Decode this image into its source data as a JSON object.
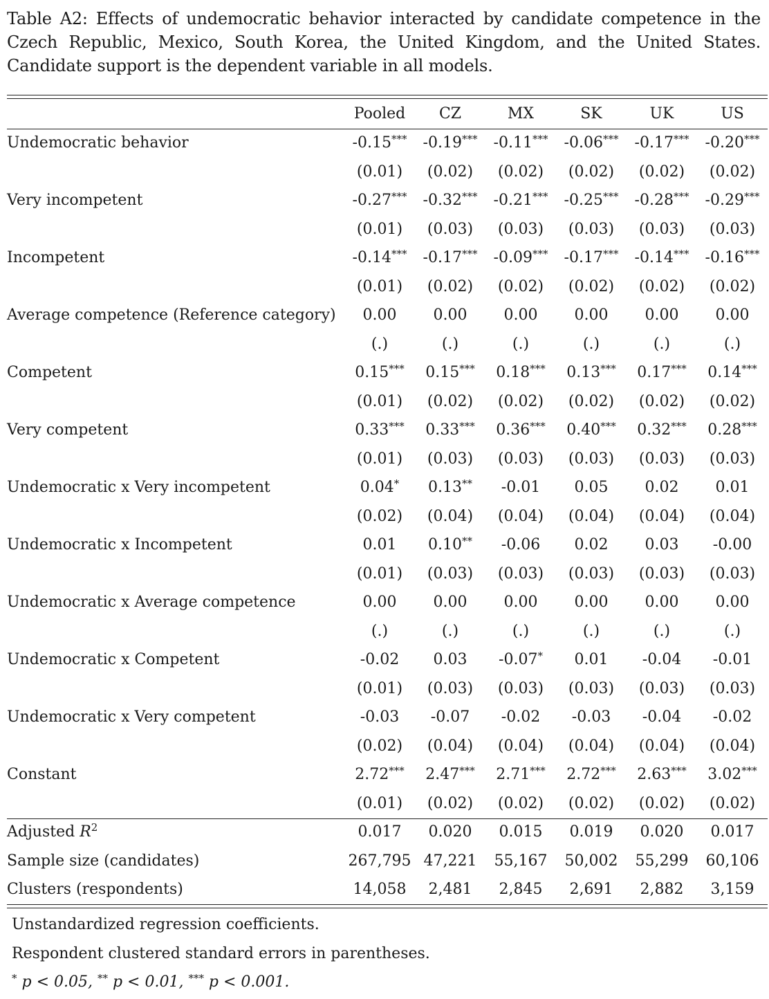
{
  "caption": {
    "lines": [
      "Table A2: Effects of undemocratic behavior interacted by candidate competence in the",
      "Czech Republic, Mexico, South Korea, the United Kingdom, and the United States.",
      "Candidate support is the dependent variable in all models."
    ]
  },
  "table": {
    "columns": [
      "Pooled",
      "CZ",
      "MX",
      "SK",
      "UK",
      "US"
    ],
    "rows": [
      {
        "label": "Undemocratic behavior",
        "coef": [
          [
            "-0.15",
            "***"
          ],
          [
            "-0.19",
            "***"
          ],
          [
            "-0.11",
            "***"
          ],
          [
            "-0.06",
            "***"
          ],
          [
            "-0.17",
            "***"
          ],
          [
            "-0.20",
            "***"
          ]
        ],
        "se": [
          "(0.01)",
          "(0.02)",
          "(0.02)",
          "(0.02)",
          "(0.02)",
          "(0.02)"
        ]
      },
      {
        "label": "Very incompetent",
        "coef": [
          [
            "-0.27",
            "***"
          ],
          [
            "-0.32",
            "***"
          ],
          [
            "-0.21",
            "***"
          ],
          [
            "-0.25",
            "***"
          ],
          [
            "-0.28",
            "***"
          ],
          [
            "-0.29",
            "***"
          ]
        ],
        "se": [
          "(0.01)",
          "(0.03)",
          "(0.03)",
          "(0.03)",
          "(0.03)",
          "(0.03)"
        ]
      },
      {
        "label": "Incompetent",
        "coef": [
          [
            "-0.14",
            "***"
          ],
          [
            "-0.17",
            "***"
          ],
          [
            "-0.09",
            "***"
          ],
          [
            "-0.17",
            "***"
          ],
          [
            "-0.14",
            "***"
          ],
          [
            "-0.16",
            "***"
          ]
        ],
        "se": [
          "(0.01)",
          "(0.02)",
          "(0.02)",
          "(0.02)",
          "(0.02)",
          "(0.02)"
        ]
      },
      {
        "label": "Average competence (Reference category)",
        "coef": [
          [
            "0.00",
            ""
          ],
          [
            "0.00",
            ""
          ],
          [
            "0.00",
            ""
          ],
          [
            "0.00",
            ""
          ],
          [
            "0.00",
            ""
          ],
          [
            "0.00",
            ""
          ]
        ],
        "se": [
          "(.)",
          "(.)",
          "(.)",
          "(.)",
          "(.)",
          "(.)"
        ]
      },
      {
        "label": "Competent",
        "coef": [
          [
            "0.15",
            "***"
          ],
          [
            "0.15",
            "***"
          ],
          [
            "0.18",
            "***"
          ],
          [
            "0.13",
            "***"
          ],
          [
            "0.17",
            "***"
          ],
          [
            "0.14",
            "***"
          ]
        ],
        "se": [
          "(0.01)",
          "(0.02)",
          "(0.02)",
          "(0.02)",
          "(0.02)",
          "(0.02)"
        ]
      },
      {
        "label": "Very competent",
        "coef": [
          [
            "0.33",
            "***"
          ],
          [
            "0.33",
            "***"
          ],
          [
            "0.36",
            "***"
          ],
          [
            "0.40",
            "***"
          ],
          [
            "0.32",
            "***"
          ],
          [
            "0.28",
            "***"
          ]
        ],
        "se": [
          "(0.01)",
          "(0.03)",
          "(0.03)",
          "(0.03)",
          "(0.03)",
          "(0.03)"
        ]
      },
      {
        "label": "Undemocratic x Very incompetent",
        "coef": [
          [
            "0.04",
            "*"
          ],
          [
            "0.13",
            "**"
          ],
          [
            "-0.01",
            ""
          ],
          [
            "0.05",
            ""
          ],
          [
            "0.02",
            ""
          ],
          [
            "0.01",
            ""
          ]
        ],
        "se": [
          "(0.02)",
          "(0.04)",
          "(0.04)",
          "(0.04)",
          "(0.04)",
          "(0.04)"
        ]
      },
      {
        "label": "Undemocratic x Incompetent",
        "coef": [
          [
            "0.01",
            ""
          ],
          [
            "0.10",
            "**"
          ],
          [
            "-0.06",
            ""
          ],
          [
            "0.02",
            ""
          ],
          [
            "0.03",
            ""
          ],
          [
            "-0.00",
            ""
          ]
        ],
        "se": [
          "(0.01)",
          "(0.03)",
          "(0.03)",
          "(0.03)",
          "(0.03)",
          "(0.03)"
        ]
      },
      {
        "label": "Undemocratic x Average competence",
        "coef": [
          [
            "0.00",
            ""
          ],
          [
            "0.00",
            ""
          ],
          [
            "0.00",
            ""
          ],
          [
            "0.00",
            ""
          ],
          [
            "0.00",
            ""
          ],
          [
            "0.00",
            ""
          ]
        ],
        "se": [
          "(.)",
          "(.)",
          "(.)",
          "(.)",
          "(.)",
          "(.)"
        ]
      },
      {
        "label": "Undemocratic x Competent",
        "coef": [
          [
            "-0.02",
            ""
          ],
          [
            "0.03",
            ""
          ],
          [
            "-0.07",
            "*"
          ],
          [
            "0.01",
            ""
          ],
          [
            "-0.04",
            ""
          ],
          [
            "-0.01",
            ""
          ]
        ],
        "se": [
          "(0.01)",
          "(0.03)",
          "(0.03)",
          "(0.03)",
          "(0.03)",
          "(0.03)"
        ]
      },
      {
        "label": "Undemocratic x Very competent",
        "coef": [
          [
            "-0.03",
            ""
          ],
          [
            "-0.07",
            ""
          ],
          [
            "-0.02",
            ""
          ],
          [
            "-0.03",
            ""
          ],
          [
            "-0.04",
            ""
          ],
          [
            "-0.02",
            ""
          ]
        ],
        "se": [
          "(0.02)",
          "(0.04)",
          "(0.04)",
          "(0.04)",
          "(0.04)",
          "(0.04)"
        ]
      },
      {
        "label": "Constant",
        "coef": [
          [
            "2.72",
            "***"
          ],
          [
            "2.47",
            "***"
          ],
          [
            "2.71",
            "***"
          ],
          [
            "2.72",
            "***"
          ],
          [
            "2.63",
            "***"
          ],
          [
            "3.02",
            "***"
          ]
        ],
        "se": [
          "(0.01)",
          "(0.02)",
          "(0.02)",
          "(0.02)",
          "(0.02)",
          "(0.02)"
        ]
      }
    ],
    "stats": [
      {
        "label": "Adjusted ",
        "label_sup": "2",
        "label_var": "R",
        "values": [
          "0.017",
          "0.020",
          "0.015",
          "0.019",
          "0.020",
          "0.017"
        ]
      },
      {
        "label": "Sample size (candidates)",
        "values": [
          "267,795",
          "47,221",
          "55,167",
          "50,002",
          "55,299",
          "60,106"
        ]
      },
      {
        "label": "Clusters (respondents)",
        "values": [
          "14,058",
          "2,481",
          "2,845",
          "2,691",
          "2,882",
          "3,159"
        ]
      }
    ]
  },
  "notes": {
    "line1": "Unstandardized regression coefficients.",
    "line2": "Respondent clustered standard errors in parentheses.",
    "sig": [
      {
        "stars": "*",
        "text": " p < 0.05, "
      },
      {
        "stars": "**",
        "text": " p < 0.01, "
      },
      {
        "stars": "***",
        "text": " p < 0.001."
      }
    ]
  }
}
